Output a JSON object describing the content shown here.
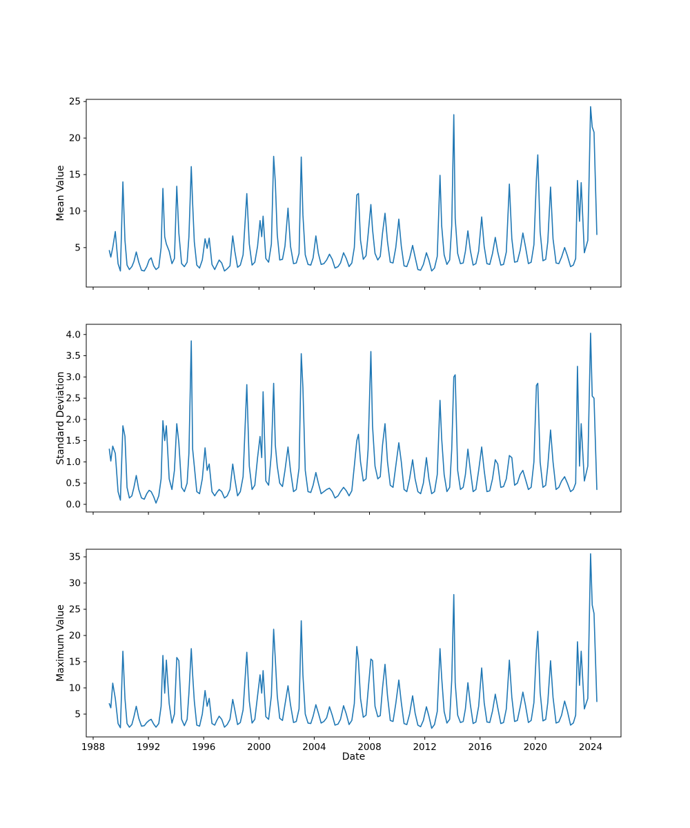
{
  "figure": {
    "background": "#ffffff",
    "line_color": "#1f77b4",
    "axis_color": "#000000",
    "text_color": "#000000"
  },
  "chart_data": {
    "type": "line",
    "title": "",
    "xlabel": "Date",
    "grid": false,
    "legend": "none",
    "xlim": [
      1987.5,
      2026.2
    ],
    "x_tick_values": [
      1988,
      1992,
      1996,
      2000,
      2004,
      2008,
      2012,
      2016,
      2020,
      2024
    ],
    "x_ticks": [
      "1988",
      "1992",
      "1996",
      "2000",
      "2004",
      "2008",
      "2012",
      "2016",
      "2020",
      "2024"
    ],
    "x": [
      1989.17,
      1989.28,
      1989.42,
      1989.6,
      1989.8,
      1989.97,
      1990.15,
      1990.3,
      1990.45,
      1990.62,
      1990.8,
      1990.95,
      1991.12,
      1991.3,
      1991.5,
      1991.7,
      1991.88,
      1992.05,
      1992.2,
      1992.38,
      1992.55,
      1992.75,
      1992.92,
      1993.05,
      1993.18,
      1993.3,
      1993.5,
      1993.7,
      1993.88,
      1994.05,
      1994.2,
      1994.4,
      1994.6,
      1994.8,
      1994.93,
      1995.1,
      1995.2,
      1995.32,
      1995.5,
      1995.7,
      1995.9,
      1996.1,
      1996.25,
      1996.4,
      1996.6,
      1996.8,
      1996.95,
      1997.12,
      1997.3,
      1997.5,
      1997.7,
      1997.9,
      1998.1,
      1998.25,
      1998.45,
      1998.65,
      1998.85,
      1999.12,
      1999.3,
      1999.5,
      1999.7,
      1999.9,
      2000.08,
      2000.2,
      2000.3,
      2000.5,
      2000.7,
      2000.9,
      2001.06,
      2001.18,
      2001.32,
      2001.5,
      2001.7,
      2001.88,
      2002.1,
      2002.28,
      2002.5,
      2002.7,
      2002.9,
      2003.06,
      2003.18,
      2003.35,
      2003.55,
      2003.75,
      2003.92,
      2004.12,
      2004.3,
      2004.5,
      2004.7,
      2004.9,
      2005.1,
      2005.3,
      2005.5,
      2005.72,
      2005.9,
      2006.12,
      2006.32,
      2006.52,
      2006.72,
      2006.9,
      2007.08,
      2007.2,
      2007.35,
      2007.55,
      2007.75,
      2007.9,
      2008.1,
      2008.22,
      2008.4,
      2008.6,
      2008.78,
      2008.94,
      2009.12,
      2009.3,
      2009.5,
      2009.7,
      2009.9,
      2010.12,
      2010.3,
      2010.5,
      2010.7,
      2010.9,
      2011.12,
      2011.3,
      2011.5,
      2011.7,
      2011.9,
      2012.12,
      2012.3,
      2012.5,
      2012.7,
      2012.9,
      2013.1,
      2013.22,
      2013.4,
      2013.6,
      2013.8,
      2013.95,
      2014.1,
      2014.2,
      2014.38,
      2014.58,
      2014.78,
      2014.94,
      2015.12,
      2015.3,
      2015.5,
      2015.7,
      2015.9,
      2016.12,
      2016.3,
      2016.5,
      2016.7,
      2016.9,
      2017.1,
      2017.28,
      2017.5,
      2017.7,
      2017.9,
      2018.12,
      2018.3,
      2018.5,
      2018.7,
      2018.9,
      2019.1,
      2019.28,
      2019.5,
      2019.7,
      2019.9,
      2020.08,
      2020.18,
      2020.35,
      2020.55,
      2020.75,
      2020.9,
      2021.1,
      2021.28,
      2021.5,
      2021.7,
      2021.9,
      2022.12,
      2022.32,
      2022.55,
      2022.75,
      2022.92,
      2023.05,
      2023.2,
      2023.32,
      2023.55,
      2023.8,
      2024.0,
      2024.12,
      2024.25,
      2024.45
    ],
    "subplots": [
      {
        "ylabel": "Mean Value",
        "ylim": [
          -0.4,
          25.3
        ],
        "y_tick_values": [
          5,
          10,
          15,
          20,
          25
        ],
        "y_ticks": [
          "5",
          "10",
          "15",
          "20",
          "25"
        ],
        "values": [
          4.6,
          3.7,
          5.0,
          7.2,
          2.8,
          1.8,
          14.0,
          6.0,
          2.6,
          2.0,
          2.4,
          3.1,
          4.4,
          3.0,
          1.9,
          1.8,
          2.4,
          3.3,
          3.6,
          2.5,
          2.0,
          2.3,
          5.0,
          13.1,
          6.5,
          5.5,
          4.5,
          2.8,
          3.5,
          13.4,
          7.0,
          2.8,
          2.4,
          3.0,
          6.5,
          16.1,
          11.0,
          5.8,
          2.6,
          2.2,
          3.3,
          6.2,
          4.9,
          6.3,
          2.7,
          2.0,
          2.6,
          3.3,
          2.9,
          1.8,
          2.1,
          2.5,
          6.6,
          4.5,
          2.3,
          2.6,
          4.0,
          12.4,
          5.5,
          2.6,
          3.0,
          5.2,
          8.7,
          6.5,
          9.3,
          3.5,
          3.0,
          5.5,
          17.5,
          14.0,
          6.8,
          3.3,
          3.4,
          5.2,
          10.4,
          5.2,
          2.8,
          2.9,
          4.2,
          17.4,
          9.5,
          4.0,
          2.7,
          2.6,
          3.6,
          6.6,
          4.2,
          2.7,
          2.8,
          3.3,
          4.1,
          3.4,
          2.2,
          2.4,
          2.9,
          4.3,
          3.5,
          2.4,
          2.9,
          5.0,
          12.2,
          12.4,
          6.0,
          3.4,
          3.9,
          6.8,
          10.9,
          7.5,
          4.2,
          3.3,
          3.8,
          7.0,
          9.7,
          5.8,
          3.0,
          2.9,
          5.0,
          8.9,
          5.2,
          2.5,
          2.4,
          3.5,
          5.3,
          3.7,
          2.0,
          1.9,
          2.7,
          4.3,
          3.3,
          1.8,
          2.2,
          3.8,
          14.9,
          8.0,
          4.0,
          2.7,
          3.3,
          8.0,
          23.2,
          9.0,
          4.2,
          2.8,
          2.9,
          4.5,
          7.3,
          4.6,
          2.6,
          2.8,
          4.5,
          9.2,
          5.2,
          2.8,
          2.7,
          4.2,
          6.4,
          4.4,
          2.6,
          2.7,
          4.4,
          13.7,
          6.2,
          3.0,
          3.1,
          4.6,
          7.0,
          5.2,
          2.8,
          3.0,
          5.4,
          14.4,
          17.7,
          7.2,
          3.2,
          3.4,
          5.8,
          13.3,
          6.2,
          2.9,
          2.8,
          3.7,
          5.0,
          3.9,
          2.4,
          2.6,
          3.5,
          14.2,
          8.6,
          13.9,
          4.3,
          6.0,
          24.3,
          21.5,
          20.8,
          6.8
        ]
      },
      {
        "ylabel": "Standard Deviation",
        "ylim": [
          -0.18,
          4.24
        ],
        "y_tick_values": [
          0,
          0.5,
          1,
          1.5,
          2,
          2.5,
          3,
          3.5,
          4
        ],
        "y_ticks": [
          "0.0",
          "0.5",
          "1.0",
          "1.5",
          "2.0",
          "2.5",
          "3.0",
          "3.5",
          "4.0"
        ],
        "values": [
          1.3,
          1.02,
          1.37,
          1.2,
          0.3,
          0.1,
          1.85,
          1.6,
          0.4,
          0.15,
          0.2,
          0.4,
          0.68,
          0.35,
          0.15,
          0.12,
          0.25,
          0.33,
          0.3,
          0.18,
          0.03,
          0.2,
          0.6,
          1.97,
          1.5,
          1.85,
          0.6,
          0.35,
          0.8,
          1.9,
          1.45,
          0.4,
          0.3,
          0.5,
          1.2,
          3.85,
          1.3,
          0.9,
          0.3,
          0.25,
          0.6,
          1.33,
          0.8,
          0.95,
          0.3,
          0.2,
          0.28,
          0.35,
          0.3,
          0.15,
          0.2,
          0.35,
          0.95,
          0.6,
          0.2,
          0.3,
          0.65,
          2.82,
          0.9,
          0.35,
          0.45,
          1.1,
          1.6,
          1.1,
          2.65,
          0.55,
          0.45,
          1.2,
          2.85,
          1.4,
          0.9,
          0.5,
          0.42,
          0.8,
          1.35,
          0.8,
          0.3,
          0.35,
          0.85,
          3.55,
          2.75,
          0.8,
          0.3,
          0.28,
          0.45,
          0.75,
          0.5,
          0.25,
          0.3,
          0.35,
          0.38,
          0.3,
          0.15,
          0.2,
          0.3,
          0.4,
          0.32,
          0.2,
          0.32,
          0.9,
          1.5,
          1.65,
          1.0,
          0.55,
          0.6,
          1.3,
          3.6,
          1.85,
          0.9,
          0.6,
          0.65,
          1.4,
          1.9,
          1.0,
          0.45,
          0.4,
          0.9,
          1.45,
          1.0,
          0.35,
          0.3,
          0.6,
          1.05,
          0.6,
          0.3,
          0.25,
          0.5,
          1.1,
          0.6,
          0.25,
          0.3,
          0.7,
          2.45,
          1.55,
          0.7,
          0.3,
          0.4,
          1.3,
          3.0,
          3.05,
          0.8,
          0.35,
          0.4,
          0.7,
          1.3,
          0.8,
          0.3,
          0.35,
          0.8,
          1.35,
          0.8,
          0.3,
          0.32,
          0.6,
          1.05,
          0.95,
          0.4,
          0.42,
          0.6,
          1.15,
          1.1,
          0.45,
          0.5,
          0.7,
          0.8,
          0.6,
          0.35,
          0.4,
          1.0,
          2.8,
          2.85,
          1.0,
          0.4,
          0.45,
          0.9,
          1.75,
          1.0,
          0.35,
          0.4,
          0.55,
          0.65,
          0.5,
          0.3,
          0.35,
          0.5,
          3.25,
          0.9,
          1.9,
          0.55,
          0.9,
          4.03,
          2.55,
          2.5,
          0.35
        ]
      },
      {
        "ylabel": "Maximum Value",
        "ylim": [
          0.65,
          36.45
        ],
        "y_tick_values": [
          5,
          10,
          15,
          20,
          25,
          30,
          35
        ],
        "y_ticks": [
          "5",
          "10",
          "15",
          "20",
          "25",
          "30",
          "35"
        ],
        "values": [
          7.0,
          6.2,
          10.9,
          8.0,
          3.2,
          2.4,
          17.0,
          8.0,
          3.2,
          2.5,
          3.0,
          4.5,
          6.5,
          4.2,
          2.7,
          2.8,
          3.4,
          3.8,
          4.0,
          3.1,
          2.5,
          3.2,
          6.5,
          16.2,
          9.0,
          15.3,
          7.0,
          3.3,
          5.0,
          15.8,
          15.2,
          4.0,
          2.8,
          4.0,
          9.0,
          17.5,
          12.5,
          7.5,
          2.9,
          2.7,
          5.0,
          9.5,
          6.5,
          8.0,
          3.2,
          2.9,
          3.8,
          4.6,
          4.0,
          2.5,
          3.0,
          4.0,
          7.8,
          5.8,
          3.0,
          3.4,
          5.8,
          16.8,
          7.5,
          3.3,
          4.0,
          8.5,
          12.5,
          9.0,
          13.3,
          4.5,
          4.0,
          8.5,
          21.2,
          15.5,
          8.5,
          4.2,
          3.8,
          6.8,
          10.4,
          6.8,
          3.4,
          3.6,
          6.0,
          22.8,
          12.5,
          5.0,
          3.3,
          3.2,
          4.6,
          6.8,
          5.2,
          3.3,
          3.6,
          4.3,
          6.4,
          4.8,
          2.9,
          3.1,
          4.0,
          6.6,
          5.0,
          3.0,
          3.8,
          7.0,
          17.9,
          15.2,
          8.0,
          4.4,
          4.8,
          9.5,
          15.5,
          15.2,
          6.5,
          4.5,
          4.7,
          10.0,
          14.5,
          8.5,
          3.8,
          3.6,
          7.0,
          11.5,
          7.2,
          3.2,
          3.0,
          5.0,
          8.5,
          5.2,
          2.9,
          2.6,
          3.8,
          6.4,
          4.6,
          2.3,
          3.0,
          5.5,
          17.5,
          12.0,
          5.5,
          3.3,
          4.0,
          11.5,
          27.8,
          11.0,
          4.8,
          3.4,
          3.6,
          6.0,
          11.0,
          6.8,
          3.2,
          3.5,
          6.5,
          13.8,
          7.2,
          3.5,
          3.4,
          5.6,
          8.8,
          6.2,
          3.2,
          3.4,
          6.0,
          15.3,
          8.2,
          3.6,
          3.8,
          6.3,
          9.2,
          6.8,
          3.4,
          3.8,
          7.2,
          17.2,
          20.8,
          9.2,
          3.7,
          4.0,
          7.2,
          15.2,
          8.2,
          3.3,
          3.5,
          4.8,
          7.5,
          5.6,
          2.9,
          3.3,
          4.8,
          18.8,
          10.5,
          17.0,
          6.0,
          8.0,
          35.6,
          25.8,
          24.2,
          7.4
        ]
      }
    ]
  }
}
